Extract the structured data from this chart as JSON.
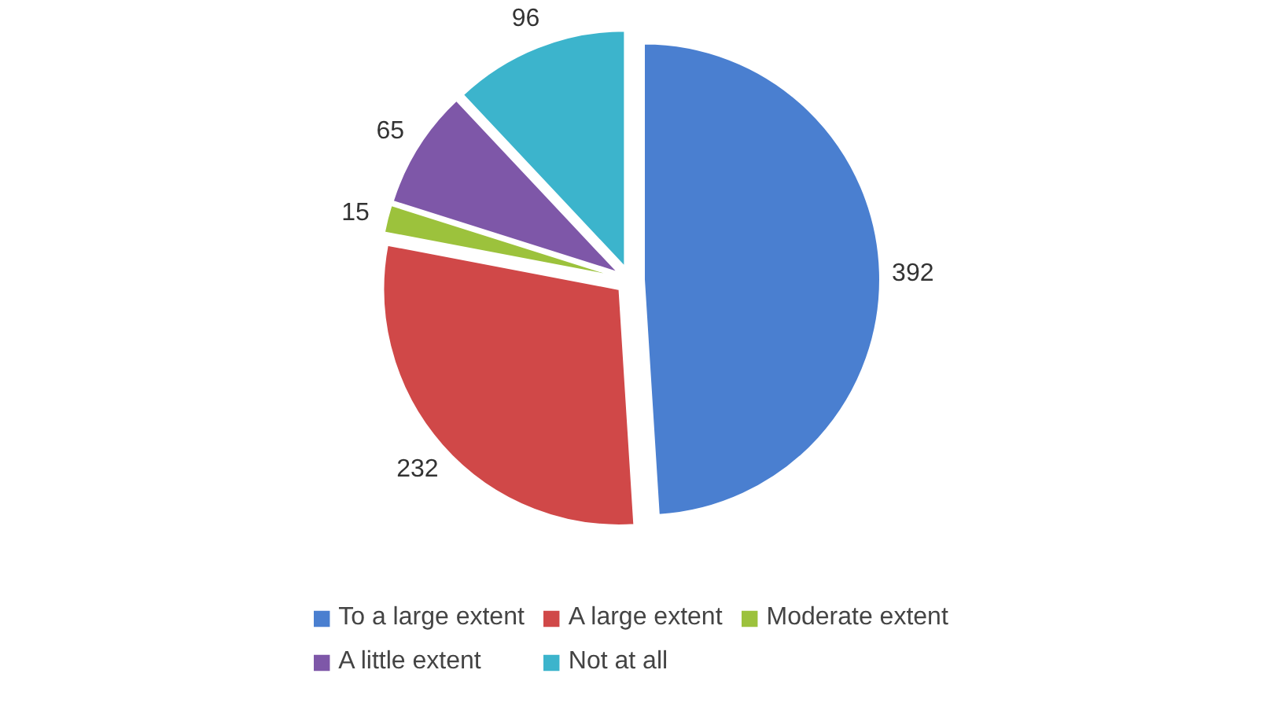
{
  "chart_data": {
    "type": "pie",
    "categories": [
      "To a large extent",
      "A large extent",
      "Moderate extent",
      "A little extent",
      "Not at all"
    ],
    "values": [
      392,
      232,
      15,
      65,
      96
    ],
    "colors": [
      "#4a7fd0",
      "#d04848",
      "#9cc23c",
      "#7e57a8",
      "#3cb4cc"
    ],
    "data_labels": true,
    "legend": "bottom"
  }
}
